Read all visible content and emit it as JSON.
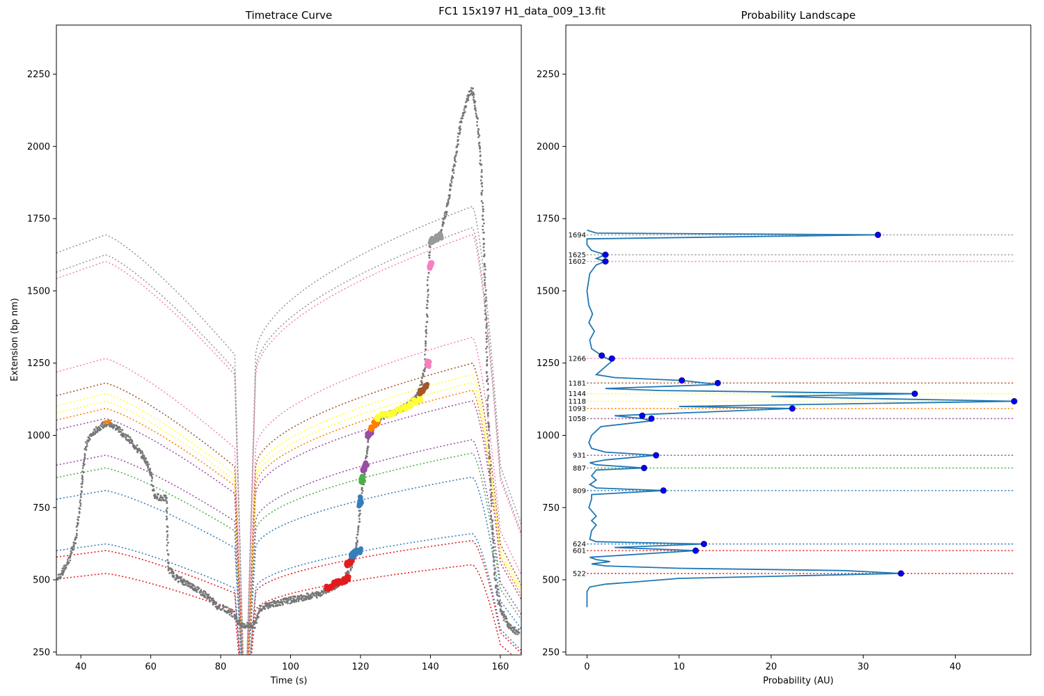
{
  "figure": {
    "suptitle": "FC1 15x197 H1_data_009_13.fit"
  },
  "colors": {
    "trace_gray": "#777777",
    "landscape_line": "#1f77b4",
    "peak_marker": "#0000ff",
    "frame": "#000000"
  },
  "chart_data": [
    {
      "type": "scatter",
      "title": "Timetrace Curve",
      "xlabel": "Time (s)",
      "ylabel": "Extension (bp nm)",
      "xlim": [
        33,
        166
      ],
      "ylim": [
        240,
        2420
      ],
      "x_ticks": [
        40,
        60,
        80,
        100,
        120,
        140,
        160
      ],
      "y_ticks": [
        250,
        500,
        750,
        1000,
        1250,
        1500,
        1750,
        2000,
        2250
      ],
      "trace": [
        [
          33.5,
          505
        ],
        [
          35,
          530
        ],
        [
          37,
          580
        ],
        [
          38.5,
          640
        ],
        [
          39.5,
          720
        ],
        [
          40.5,
          860
        ],
        [
          41.5,
          970
        ],
        [
          43,
          1000
        ],
        [
          45,
          1025
        ],
        [
          47,
          1040
        ],
        [
          49,
          1035
        ],
        [
          51,
          1020
        ],
        [
          53,
          995
        ],
        [
          55,
          970
        ],
        [
          57,
          940
        ],
        [
          59,
          905
        ],
        [
          60,
          870
        ],
        [
          61,
          790
        ],
        [
          63,
          785
        ],
        [
          64.5,
          780
        ],
        [
          65,
          540
        ],
        [
          67,
          510
        ],
        [
          70,
          490
        ],
        [
          73,
          470
        ],
        [
          76,
          445
        ],
        [
          79,
          410
        ],
        [
          82,
          395
        ],
        [
          84,
          380
        ],
        [
          85.5,
          345
        ],
        [
          88,
          340
        ],
        [
          90,
          345
        ],
        [
          91,
          400
        ],
        [
          93,
          410
        ],
        [
          96,
          420
        ],
        [
          100,
          430
        ],
        [
          104,
          440
        ],
        [
          108,
          450
        ],
        [
          111,
          470
        ],
        [
          113,
          480
        ],
        [
          115,
          490
        ],
        [
          117,
          540
        ],
        [
          118.5,
          590
        ],
        [
          119.5,
          680
        ],
        [
          120,
          770
        ],
        [
          121,
          850
        ],
        [
          121.5,
          900
        ],
        [
          122.5,
          1000
        ],
        [
          124,
          1040
        ],
        [
          126,
          1065
        ],
        [
          130,
          1080
        ],
        [
          133,
          1100
        ],
        [
          135,
          1120
        ],
        [
          137,
          1150
        ],
        [
          138.5,
          1240
        ],
        [
          139.5,
          1590
        ],
        [
          140,
          1675
        ],
        [
          142,
          1685
        ],
        [
          143,
          1700
        ],
        [
          145,
          1800
        ],
        [
          147,
          1950
        ],
        [
          149,
          2100
        ],
        [
          151,
          2180
        ],
        [
          152,
          2195
        ],
        [
          153.5,
          2090
        ],
        [
          154.5,
          1920
        ],
        [
          155.5,
          1620
        ],
        [
          156.5,
          1080
        ],
        [
          157.5,
          730
        ],
        [
          158.5,
          500
        ],
        [
          160,
          400
        ],
        [
          162,
          350
        ],
        [
          164,
          325
        ],
        [
          165.5,
          320
        ]
      ],
      "dwell_clusters": [
        {
          "color": "#e41a1c",
          "points": [
            [
              110.5,
              470
            ],
            [
              111.5,
              478
            ],
            [
              112.5,
              486
            ],
            [
              113.5,
              490
            ],
            [
              114.5,
              492
            ],
            [
              115.5,
              498
            ],
            [
              116.3,
              504
            ]
          ]
        },
        {
          "color": "#e41a1c",
          "points": [
            [
              116.4,
              556
            ],
            [
              117,
              563
            ],
            [
              117.5,
              570
            ]
          ]
        },
        {
          "color": "#377eb8",
          "points": [
            [
              117.6,
              586
            ],
            [
              118.3,
              592
            ],
            [
              119,
              598
            ],
            [
              119.8,
              600
            ]
          ]
        },
        {
          "color": "#377eb8",
          "points": [
            [
              119.6,
              762
            ],
            [
              120,
              770
            ],
            [
              120.3,
              780
            ]
          ]
        },
        {
          "color": "#4daf4a",
          "points": [
            [
              120.5,
              843
            ],
            [
              120.8,
              850
            ]
          ]
        },
        {
          "color": "#984ea3",
          "points": [
            [
              121,
              878
            ],
            [
              121.3,
              888
            ],
            [
              121.5,
              898
            ]
          ]
        },
        {
          "color": "#984ea3",
          "points": [
            [
              122.3,
              1000
            ],
            [
              122.7,
              1008
            ],
            [
              123,
              1015
            ]
          ]
        },
        {
          "color": "#ff7f00",
          "points": [
            [
              123.3,
              1025
            ],
            [
              124,
              1040
            ],
            [
              124.8,
              1050
            ]
          ]
        },
        {
          "color": "#ffff33",
          "points": [
            [
              125,
              1060
            ],
            [
              126.5,
              1068
            ],
            [
              128,
              1072
            ],
            [
              129.5,
              1080
            ],
            [
              131,
              1090
            ],
            [
              132.5,
              1096
            ],
            [
              134,
              1106
            ],
            [
              135.5,
              1116
            ],
            [
              137,
              1126
            ]
          ]
        },
        {
          "color": "#a65628",
          "points": [
            [
              137.2,
              1150
            ],
            [
              138,
              1160
            ],
            [
              138.8,
              1172
            ]
          ]
        },
        {
          "color": "#f781bf",
          "points": [
            [
              139.2,
              1245
            ],
            [
              139.4,
              1250
            ]
          ]
        },
        {
          "color": "#f781bf",
          "points": [
            [
              140,
              1585
            ],
            [
              140.2,
              1590
            ]
          ]
        },
        {
          "color": "#999999",
          "points": [
            [
              140.2,
              1672
            ],
            [
              141,
              1678
            ],
            [
              142,
              1684
            ],
            [
              143,
              1690
            ]
          ]
        }
      ],
      "dwell_marker": {
        "color": "#ff7f00",
        "points": [
          [
            47,
            1045
          ],
          [
            48,
            1048
          ]
        ]
      },
      "theory_curves": [
        {
          "level": 522,
          "color": "#e41a1c"
        },
        {
          "level": 601,
          "color": "#e41a1c"
        },
        {
          "level": 624,
          "color": "#377eb8"
        },
        {
          "level": 809,
          "color": "#377eb8"
        },
        {
          "level": 887,
          "color": "#4daf4a"
        },
        {
          "level": 931,
          "color": "#984ea3"
        },
        {
          "level": 1058,
          "color": "#984ea3"
        },
        {
          "level": 1093,
          "color": "#ff7f00"
        },
        {
          "level": 1118,
          "color": "#ffff33"
        },
        {
          "level": 1144,
          "color": "#ffff33"
        },
        {
          "level": 1181,
          "color": "#a65628"
        },
        {
          "level": 1266,
          "color": "#f781bf"
        },
        {
          "level": 1602,
          "color": "#f781bf"
        },
        {
          "level": 1625,
          "color": "#999999"
        },
        {
          "level": 1694,
          "color": "#999999"
        }
      ]
    },
    {
      "type": "line",
      "title": "Probability Landscape",
      "xlabel": "Probability (AU)",
      "ylabel": "",
      "xlim": [
        -2.3,
        48.2
      ],
      "ylim": [
        240,
        2420
      ],
      "x_ticks": [
        0,
        10,
        20,
        30,
        40
      ],
      "y_ticks": [
        250,
        500,
        750,
        1000,
        1250,
        1500,
        1750,
        2000,
        2250
      ],
      "landscape": [
        [
          0,
          405
        ],
        [
          0,
          460
        ],
        [
          0.3,
          475
        ],
        [
          2,
          485
        ],
        [
          5,
          492
        ],
        [
          10,
          505
        ],
        [
          20,
          512
        ],
        [
          34,
          522
        ],
        [
          28,
          532
        ],
        [
          10,
          540
        ],
        [
          2,
          548
        ],
        [
          0.5,
          555
        ],
        [
          2.5,
          563
        ],
        [
          1,
          570
        ],
        [
          0.3,
          578
        ],
        [
          11.8,
          601
        ],
        [
          3,
          612
        ],
        [
          12.7,
          624
        ],
        [
          1,
          632
        ],
        [
          0.3,
          640
        ],
        [
          0.5,
          670
        ],
        [
          1,
          690
        ],
        [
          0.5,
          705
        ],
        [
          1,
          720
        ],
        [
          0.2,
          750
        ],
        [
          0.5,
          780
        ],
        [
          0.5,
          795
        ],
        [
          8.3,
          809
        ],
        [
          1,
          818
        ],
        [
          0.3,
          830
        ],
        [
          1,
          845
        ],
        [
          0.5,
          860
        ],
        [
          1,
          880
        ],
        [
          6.2,
          887
        ],
        [
          1,
          898
        ],
        [
          0.3,
          905
        ],
        [
          2,
          915
        ],
        [
          7.5,
          931
        ],
        [
          2,
          942
        ],
        [
          0.5,
          955
        ],
        [
          0.2,
          975
        ],
        [
          0.5,
          1000
        ],
        [
          1.5,
          1030
        ],
        [
          7,
          1050
        ],
        [
          6,
          1058
        ],
        [
          3,
          1068
        ],
        [
          22.3,
          1093
        ],
        [
          10,
          1100
        ],
        [
          46.4,
          1118
        ],
        [
          30,
          1128
        ],
        [
          20,
          1135
        ],
        [
          35.6,
          1144
        ],
        [
          8,
          1155
        ],
        [
          2,
          1162
        ],
        [
          14.2,
          1176
        ],
        [
          10.3,
          1190
        ],
        [
          3,
          1200
        ],
        [
          1,
          1210
        ],
        [
          2.7,
          1257
        ],
        [
          1.6,
          1276
        ],
        [
          0.5,
          1300
        ],
        [
          0.3,
          1330
        ],
        [
          0.8,
          1360
        ],
        [
          0.2,
          1390
        ],
        [
          0.6,
          1420
        ],
        [
          0.2,
          1450
        ],
        [
          0,
          1500
        ],
        [
          0.3,
          1560
        ],
        [
          1,
          1590
        ],
        [
          2,
          1602
        ],
        [
          1,
          1612
        ],
        [
          2,
          1625
        ],
        [
          0.5,
          1640
        ],
        [
          0,
          1660
        ],
        [
          0,
          1680
        ],
        [
          31.6,
          1694
        ],
        [
          1,
          1700
        ],
        [
          0,
          1710
        ]
      ],
      "peaks": [
        {
          "label": "522",
          "y": 522,
          "x": 34.1,
          "color": "#e41a1c"
        },
        {
          "label": "601",
          "y": 601,
          "x": 11.8,
          "color": "#e41a1c"
        },
        {
          "label": "624",
          "y": 624,
          "x": 12.7,
          "color": "#377eb8"
        },
        {
          "label": "809",
          "y": 809,
          "x": 8.3,
          "color": "#377eb8"
        },
        {
          "label": "887",
          "y": 887,
          "x": 6.2,
          "color": "#4daf4a"
        },
        {
          "label": "931",
          "y": 931,
          "x": 7.5,
          "color": "#984ea3"
        },
        {
          "label": "1058",
          "y": 1058,
          "x": 7.0,
          "color": "#984ea3"
        },
        {
          "label": "1093",
          "y": 1093,
          "x": 22.3,
          "color": "#ff7f00"
        },
        {
          "label": "1118",
          "y": 1118,
          "x": 46.4,
          "color": "#ffff33"
        },
        {
          "label": "1144",
          "y": 1144,
          "x": 35.6,
          "color": "#ffff33"
        },
        {
          "label": "1181",
          "y": 1181,
          "x": 14.2,
          "color": "#a65628"
        },
        {
          "label": "1266",
          "y": 1266,
          "x": 2.7,
          "color": "#f781bf"
        },
        {
          "label": "1602",
          "y": 1602,
          "x": 2.0,
          "color": "#f781bf"
        },
        {
          "label": "1625",
          "y": 1625,
          "x": 2.0,
          "color": "#999999"
        },
        {
          "label": "1694",
          "y": 1694,
          "x": 31.6,
          "color": "#999999"
        }
      ],
      "extra_markers": [
        {
          "x": 10.3,
          "y": 1190
        },
        {
          "x": 6.0,
          "y": 1068
        },
        {
          "x": 1.6,
          "y": 1276
        }
      ]
    }
  ]
}
